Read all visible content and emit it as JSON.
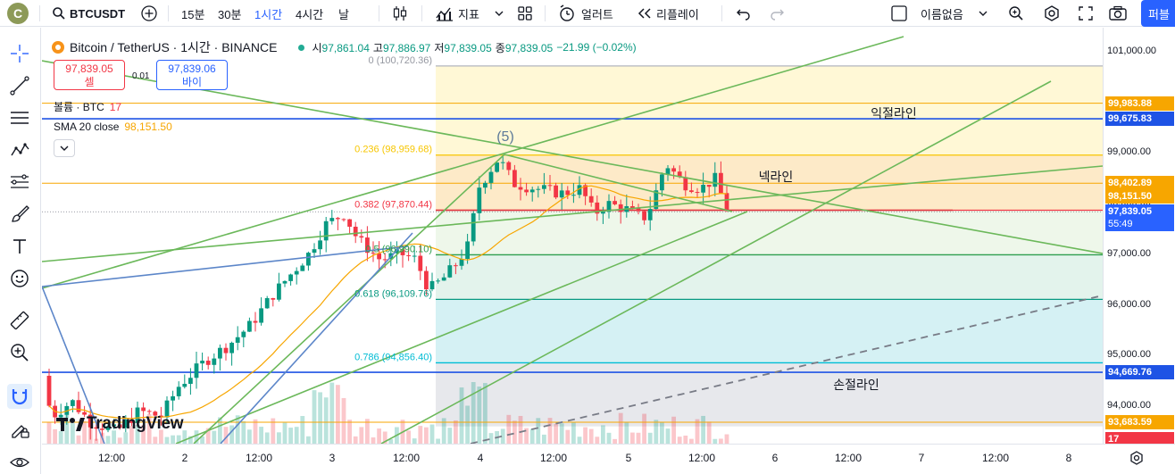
{
  "topbar": {
    "avatar_letter": "C",
    "symbol": "BTCUSDT",
    "intervals": [
      "15분",
      "30분",
      "1시간",
      "4시간"
    ],
    "active_interval": "1시간",
    "chart_style": "날",
    "indicators_label": "지표",
    "alert_label": "얼러트",
    "replay_label": "리플레이",
    "layout_name": "이름없음",
    "publish_label": "퍼블"
  },
  "legend": {
    "title": "Bitcoin / TetherUS · 1시간 · BINANCE",
    "open_label": "시",
    "open": "97,861.04",
    "high_label": "고",
    "high": "97,886.97",
    "low_label": "저",
    "low": "97,839.05",
    "close_label": "종",
    "close": "97,839.05",
    "change": "−21.99 (−0.02%)",
    "sell_price": "97,839.05",
    "sell_label": "셀",
    "buy_price": "97,839.06",
    "buy_label": "바이",
    "spread": "0.01",
    "volume_label": "볼륨 · BTC",
    "volume_value": "17",
    "sma_label": "SMA 20 close",
    "sma_value": "98,151.50"
  },
  "drawings": {
    "annotation_5": "(5)",
    "take_profit": "익절라인",
    "neckline": "넥라인",
    "stop_loss": "손절라인",
    "fib_levels": [
      {
        "ratio": "0 (100,720.36)",
        "price": 100720.36
      },
      {
        "ratio": "0.236 (98,959.68)",
        "price": 98959.68
      },
      {
        "ratio": "0.382 (97,870.44)",
        "price": 97870.44
      },
      {
        "ratio": "0.5 (96,990.10)",
        "price": 96990.1
      },
      {
        "ratio": "0.618 (96,109.76)",
        "price": 96109.76
      },
      {
        "ratio": "0.786 (94,856.40)",
        "price": 94856.4
      }
    ]
  },
  "price_axis": {
    "ticks": [
      "101,000.00",
      "99,000.00",
      "98,000.00",
      "97,000.00",
      "96,000.00",
      "95,000.00",
      "94,000.00"
    ],
    "tags": [
      {
        "text": "99,983.88",
        "color": "#f7a600"
      },
      {
        "text": "99,675.83",
        "color": "#1e53e5"
      },
      {
        "text": "98,402.89",
        "color": "#f7a600"
      },
      {
        "text": "98,151.50",
        "color": "#f7a600"
      },
      {
        "text": "97,839.05",
        "color": "#2962ff",
        "sub": "55:49"
      },
      {
        "text": "94,669.76",
        "color": "#1e53e5"
      },
      {
        "text": "93,683.59",
        "color": "#f7a600"
      },
      {
        "text": "17",
        "color": "#f23645"
      }
    ]
  },
  "time_axis": {
    "ticks": [
      "12:00",
      "2",
      "12:00",
      "3",
      "12:00",
      "4",
      "12:00",
      "5",
      "12:00",
      "6",
      "12:00",
      "7",
      "12:00",
      "8"
    ]
  },
  "branding": {
    "logo_text": "TradingView"
  },
  "colors": {
    "up": "#089981",
    "down": "#f23645",
    "accent": "#2962ff",
    "sma": "#f7a600"
  }
}
